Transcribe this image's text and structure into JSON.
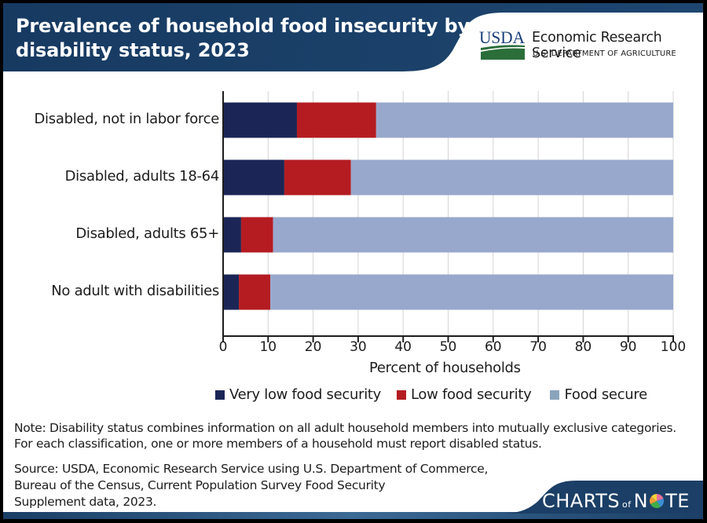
{
  "header": {
    "title_line1": "Prevalence of household food insecurity by",
    "title_line2": "disability status, 2023",
    "agency_logo_text": "USDA",
    "agency_name": "Economic Research Service",
    "department": "U.S. DEPARTMENT OF AGRICULTURE"
  },
  "colors": {
    "header_navy": "#1b3f66",
    "very_low": "#1b2656",
    "low": "#b41c22",
    "secure": "#98a8cc",
    "secure_legend": "#8aa4bc",
    "usda_blue": "#1c3f7c",
    "usda_green": "#2b6e3a"
  },
  "chart_data": {
    "type": "bar",
    "orientation": "horizontal",
    "stacked": true,
    "title": "Prevalence of household food insecurity by disability status, 2023",
    "categories": [
      "Disabled, not in labor force",
      "Disabled, adults 18-64",
      "Disabled, adults 65+",
      "No adult with disabilities"
    ],
    "series": [
      {
        "name": "Very low food security",
        "values": [
          16.4,
          13.6,
          4.0,
          3.5
        ]
      },
      {
        "name": "Low food security",
        "values": [
          17.6,
          14.8,
          7.1,
          7.0
        ]
      },
      {
        "name": "Food secure",
        "values": [
          66.0,
          71.6,
          88.9,
          89.5
        ]
      }
    ],
    "xlabel": "Percent of households",
    "ylabel": "",
    "xlim": [
      0,
      100
    ],
    "xticks": [
      "0",
      "10",
      "20",
      "30",
      "40",
      "50",
      "60",
      "70",
      "80",
      "90",
      "100"
    ],
    "grid": true,
    "legend_position": "bottom"
  },
  "note": "Note: Disability status combines information on all adult household members into mutually exclusive categories. For each classification, one or more members of a household must report disabled status.",
  "source_lines": [
    "Source: USDA, Economic Research Service using U.S. Department of Commerce,",
    "Bureau of the Census, Current Population Survey Food Security",
    "Supplement data, 2023."
  ],
  "footer": {
    "brand_left": "CHARTS",
    "brand_of": "of",
    "brand_n": "N",
    "brand_te": "TE"
  }
}
